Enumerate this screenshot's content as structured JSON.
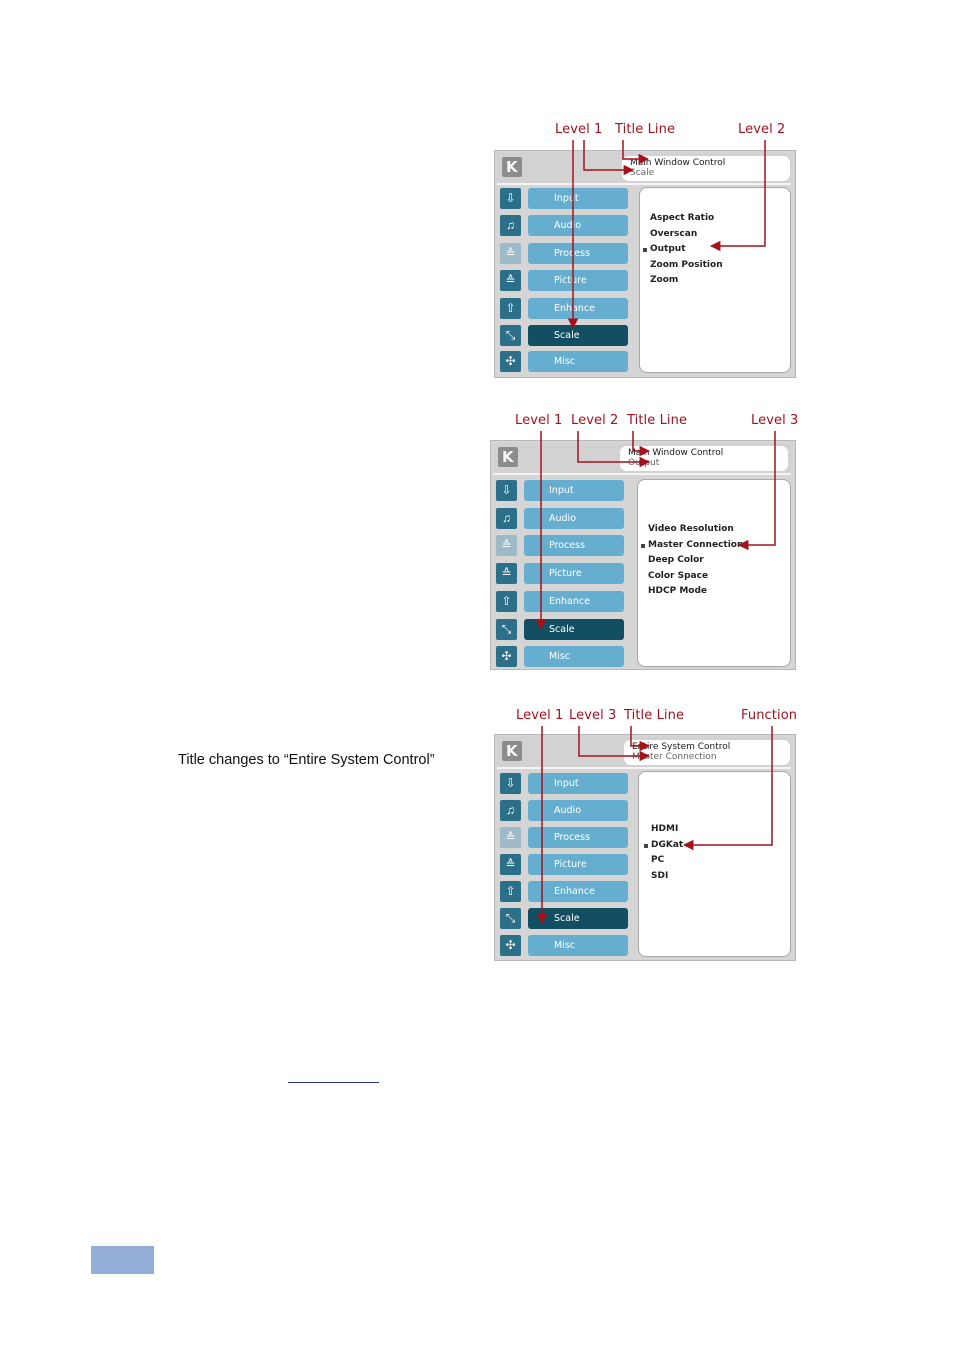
{
  "caption": "Title changes to “Entire System Control”",
  "icons": {
    "logo": "kramer-k-logo",
    "menu": [
      "input-icon",
      "audio-icon",
      "process-icon",
      "picture-icon",
      "enhance-icon",
      "scale-icon",
      "misc-icon"
    ]
  },
  "diagrams": [
    {
      "annotations": [
        "Level 1",
        "Title Line",
        "Level 2"
      ],
      "title_line1": "Main Window Control",
      "title_line2": "Scale",
      "menu": [
        "Input",
        "Audio",
        "Process",
        "Picture",
        "Enhance",
        "Scale",
        "Misc"
      ],
      "active_menu": "Scale",
      "content": [
        "Aspect Ratio",
        "Overscan",
        "Output",
        "Zoom Position",
        "Zoom"
      ],
      "selected_content": "Output"
    },
    {
      "annotations": [
        "Level 1",
        "Level 2",
        "Title Line",
        "Level 3"
      ],
      "title_line1": "Main Window Control",
      "title_line2": "Output",
      "menu": [
        "Input",
        "Audio",
        "Process",
        "Picture",
        "Enhance",
        "Scale",
        "Misc"
      ],
      "active_menu": "Scale",
      "content": [
        "Video Resolution",
        "Master Connection",
        "Deep Color",
        "Color Space",
        "HDCP Mode"
      ],
      "selected_content": "Master Connection"
    },
    {
      "annotations": [
        "Level 1",
        "Level 3",
        "Title Line",
        "Function"
      ],
      "title_line1": "Entire System Control",
      "title_line2": "Master Connection",
      "menu": [
        "Input",
        "Audio",
        "Process",
        "Picture",
        "Enhance",
        "Scale",
        "Misc"
      ],
      "active_menu": "Scale",
      "content": [
        "HDMI",
        "DGKat",
        "PC",
        "SDI"
      ],
      "selected_content": "DGKat"
    }
  ]
}
